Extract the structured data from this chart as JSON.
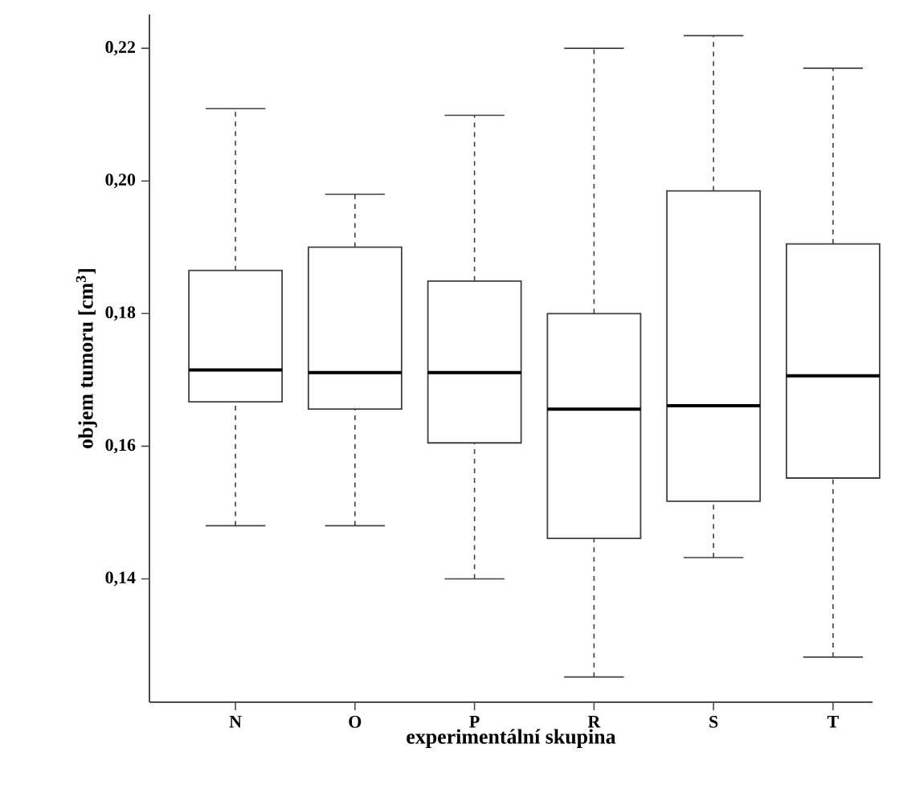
{
  "chart_data": {
    "type": "box",
    "xlabel": "experimentální skupina",
    "ylabel": "objem tumoru [cm$^{3}$]",
    "categories": [
      "N",
      "O",
      "P",
      "R",
      "S",
      "T"
    ],
    "boxes": [
      {
        "low": 0.148,
        "q1": 0.1667,
        "median": 0.1715,
        "q3": 0.1865,
        "high": 0.2109
      },
      {
        "low": 0.148,
        "q1": 0.1656,
        "median": 0.1711,
        "q3": 0.19,
        "high": 0.198
      },
      {
        "low": 0.14,
        "q1": 0.1605,
        "median": 0.1711,
        "q3": 0.1849,
        "high": 0.2099
      },
      {
        "low": 0.1252,
        "q1": 0.1461,
        "median": 0.1656,
        "q3": 0.18,
        "high": 0.22
      },
      {
        "low": 0.1432,
        "q1": 0.1517,
        "median": 0.1661,
        "q3": 0.1985,
        "high": 0.2219
      },
      {
        "low": 0.1282,
        "q1": 0.1552,
        "median": 0.1706,
        "q3": 0.1905,
        "high": 0.217
      }
    ],
    "ylim": [
      0.1214,
      0.2251
    ],
    "yticks": [
      {
        "value": 0.14,
        "label": "0,14"
      },
      {
        "value": 0.16,
        "label": "0,16"
      },
      {
        "value": 0.18,
        "label": "0,18"
      },
      {
        "value": 0.2,
        "label": "0,20"
      },
      {
        "value": 0.22,
        "label": "0,22"
      }
    ]
  }
}
